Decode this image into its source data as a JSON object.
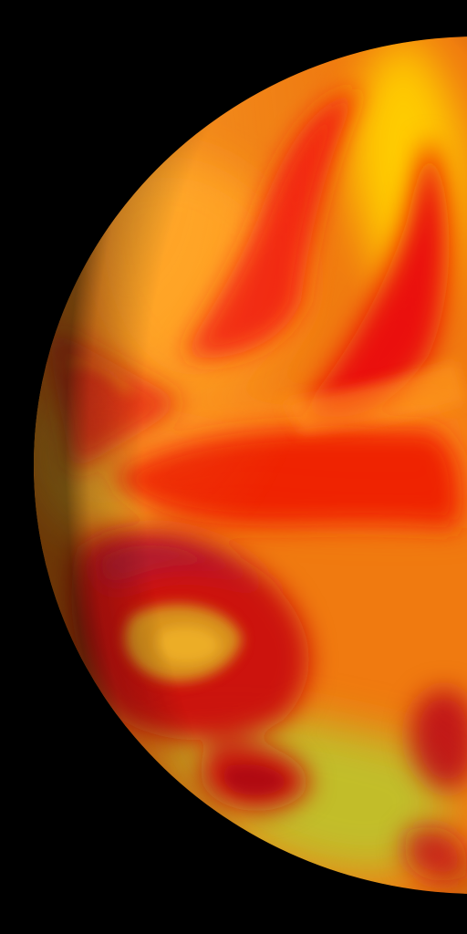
{
  "image": {
    "subject": "Planet",
    "kind": "false-color globe",
    "background_color": "#000000",
    "palette": {
      "base": "#f07a10",
      "hot_red": "#e81208",
      "deep_red": "#b8061a",
      "magenta": "#a01a3c",
      "orange": "#ff8a18",
      "gold": "#ffd000",
      "yellow_green": "#b8bf22",
      "highlight": "#fff06a",
      "shadow": "#2a0508"
    }
  }
}
